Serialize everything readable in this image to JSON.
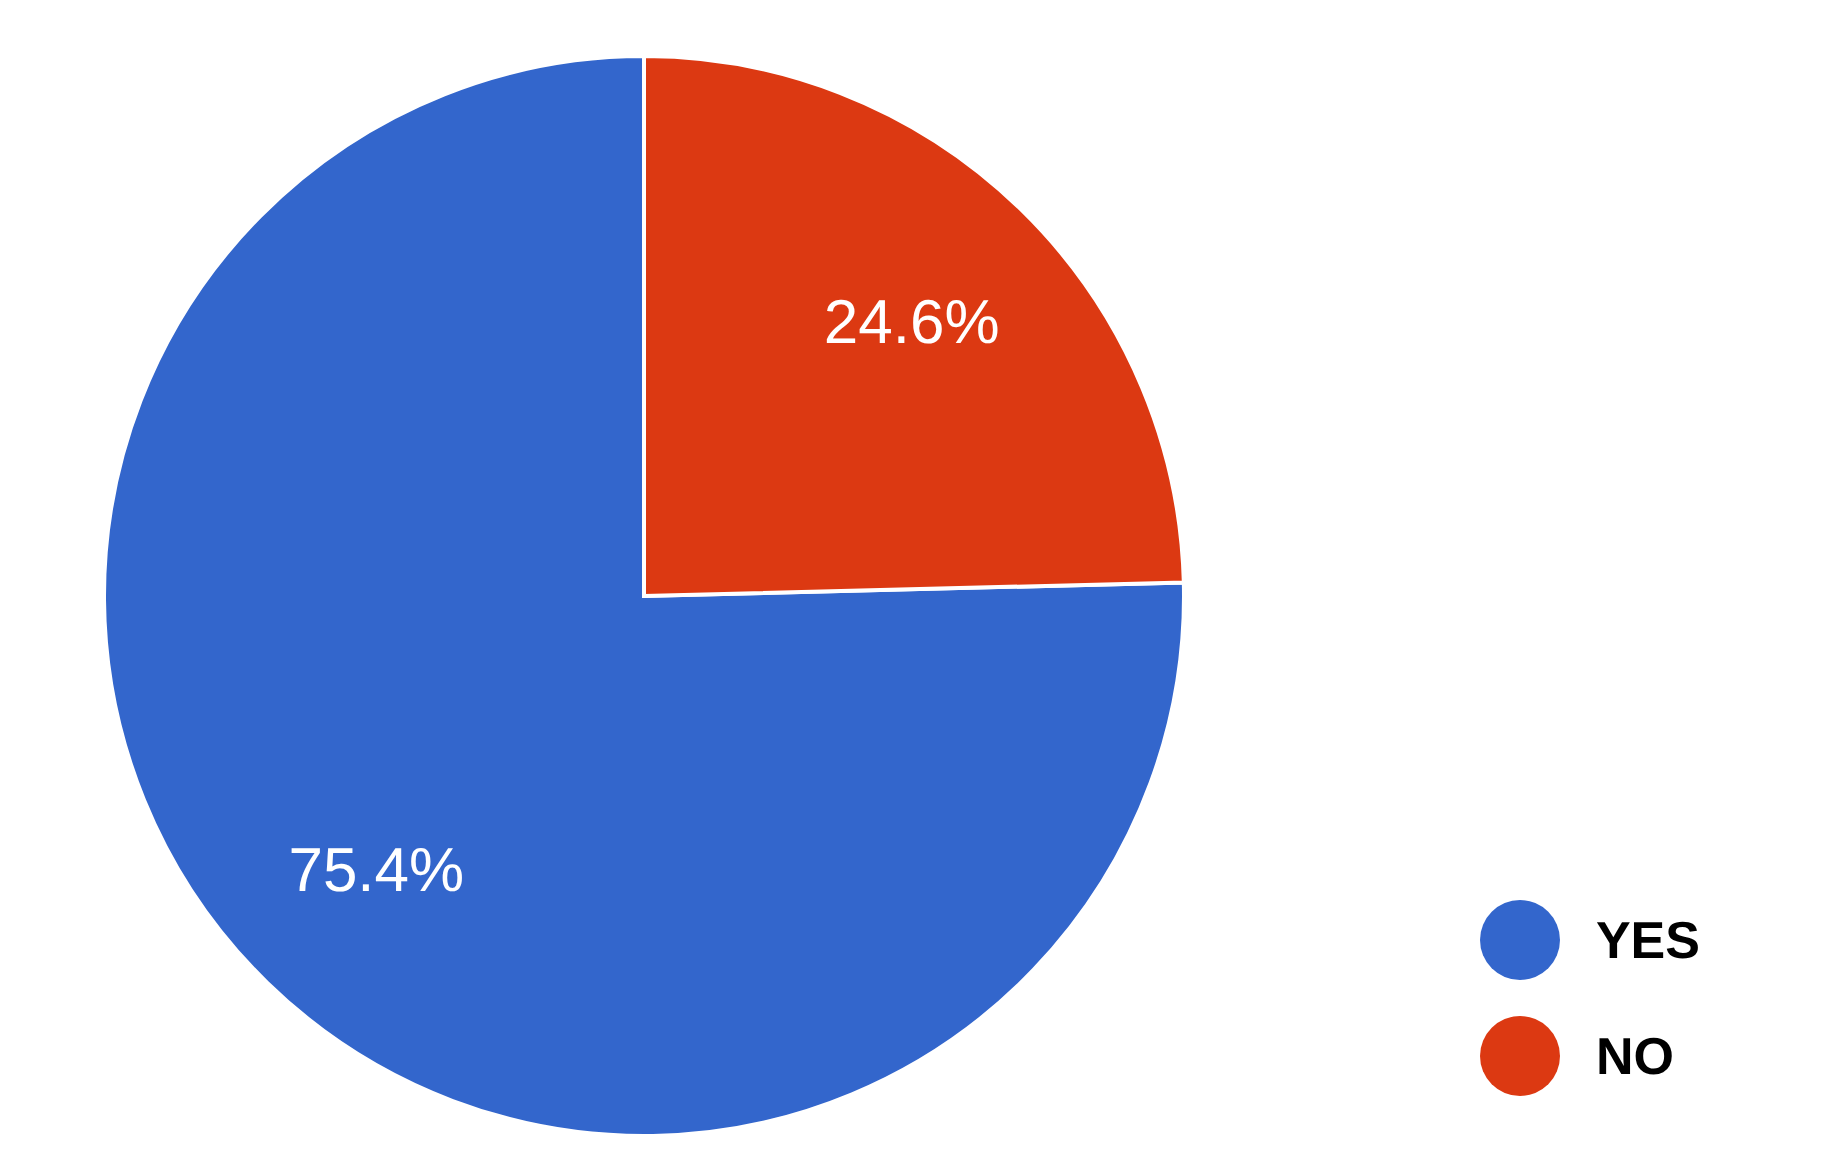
{
  "chart_data": {
    "type": "pie",
    "categories": [
      "YES",
      "NO"
    ],
    "values": [
      75.4,
      24.6
    ],
    "colors": [
      "#3366cc",
      "#dc3912"
    ],
    "value_labels": [
      "75.4%",
      "24.6%"
    ],
    "legend": "bottom right"
  }
}
